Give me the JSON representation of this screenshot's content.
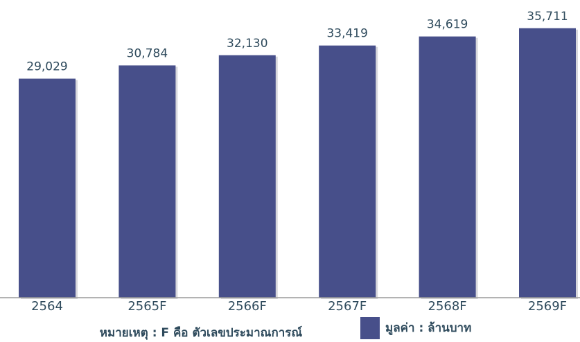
{
  "chart_data": {
    "type": "bar",
    "categories": [
      "2564",
      "2565F",
      "2566F",
      "2567F",
      "2568F",
      "2569F"
    ],
    "series": [
      {
        "name": "มูลค่า : ล้านบาท",
        "color": "#474f8a",
        "values": [
          29029,
          30784,
          32130,
          33419,
          34619,
          35711
        ],
        "value_labels": [
          "29,029",
          "30,784",
          "32,130",
          "33,419",
          "34,619",
          "35,711"
        ]
      }
    ],
    "ylim": [
      0,
      40000
    ],
    "note": "หมายเหตุ : F คือ ตัวเลขประมาณการณ์"
  }
}
